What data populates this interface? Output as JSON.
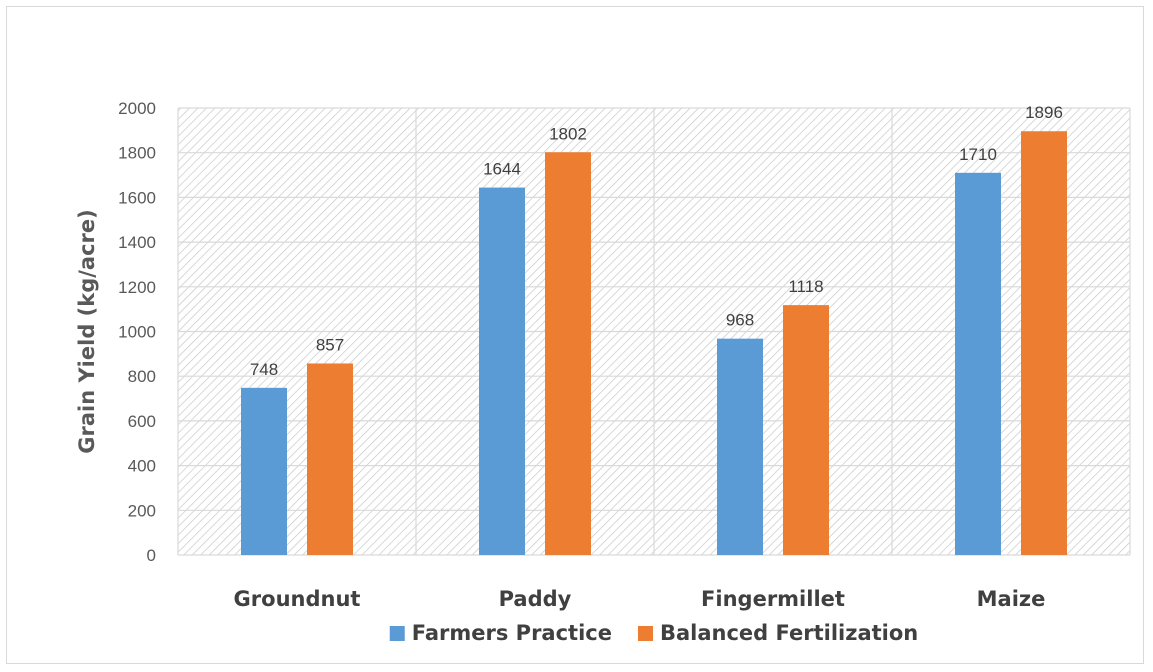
{
  "chart_data": {
    "type": "bar",
    "categories": [
      "Groundnut",
      "Paddy",
      "Fingermillet",
      "Maize"
    ],
    "series": [
      {
        "name": "Farmers Practice",
        "values": [
          748,
          1644,
          968,
          1710
        ],
        "color": "#5b9bd5"
      },
      {
        "name": "Balanced Fertilization",
        "values": [
          857,
          1802,
          1118,
          1896
        ],
        "color": "#ed7d31"
      }
    ],
    "title": "",
    "xlabel": "",
    "ylabel": "Grain Yield (kg/acre)",
    "ylim": [
      0,
      2000
    ],
    "yticks": [
      0,
      200,
      400,
      600,
      800,
      1000,
      1200,
      1400,
      1600,
      1800,
      2000
    ],
    "grid": true,
    "plot_background": "hatched",
    "legend_position": "bottom"
  }
}
